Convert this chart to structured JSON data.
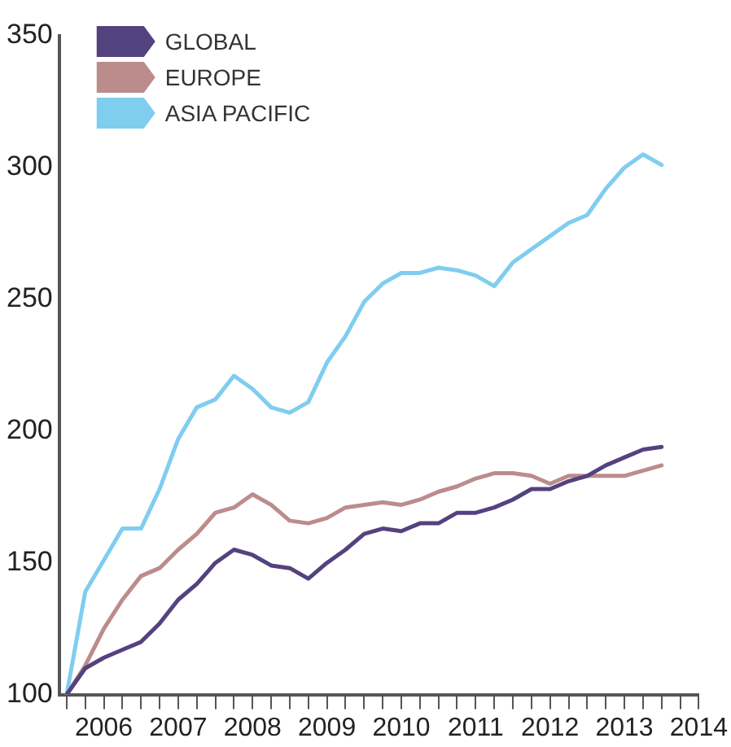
{
  "chart_data": {
    "type": "line",
    "legend": "top left",
    "marker": "none",
    "line_style": "solid",
    "grid": false,
    "x": [
      2005.5,
      2005.75,
      2006,
      2006.25,
      2006.5,
      2006.75,
      2007,
      2007.25,
      2007.5,
      2007.75,
      2008,
      2008.25,
      2008.5,
      2008.75,
      2009,
      2009.25,
      2009.5,
      2009.75,
      2010,
      2010.25,
      2010.5,
      2010.75,
      2011,
      2011.25,
      2011.5,
      2011.75,
      2012,
      2012.25,
      2012.5,
      2012.75,
      2013,
      2013.25,
      2013.5
    ],
    "xlim": [
      2005.4,
      2014
    ],
    "xticks": [
      {
        "value": 2005.5,
        "label": null
      },
      {
        "value": 2005.75,
        "label": null
      },
      2006,
      {
        "value": 2006.25,
        "label": null
      },
      {
        "value": 2006.5,
        "label": null
      },
      {
        "value": 2006.75,
        "label": null
      },
      2007,
      {
        "value": 2007.25,
        "label": null
      },
      {
        "value": 2007.5,
        "label": null
      },
      {
        "value": 2007.75,
        "label": null
      },
      2008,
      {
        "value": 2008.25,
        "label": null
      },
      {
        "value": 2008.5,
        "label": null
      },
      {
        "value": 2008.75,
        "label": null
      },
      2009,
      {
        "value": 2009.25,
        "label": null
      },
      {
        "value": 2009.5,
        "label": null
      },
      {
        "value": 2009.75,
        "label": null
      },
      2010,
      {
        "value": 2010.25,
        "label": null
      },
      {
        "value": 2010.5,
        "label": null
      },
      {
        "value": 2010.75,
        "label": null
      },
      2011,
      {
        "value": 2011.25,
        "label": null
      },
      {
        "value": 2011.5,
        "label": null
      },
      {
        "value": 2011.75,
        "label": null
      },
      2012,
      {
        "value": 2012.25,
        "label": null
      },
      {
        "value": 2012.5,
        "label": null
      },
      {
        "value": 2012.75,
        "label": null
      },
      2013,
      {
        "value": 2013.25,
        "label": null
      },
      {
        "value": 2013.5,
        "label": null
      },
      {
        "value": 2013.75,
        "label": null
      },
      2014
    ],
    "ylim": [
      100,
      350
    ],
    "yticks": [
      100,
      150,
      200,
      250,
      300,
      350
    ],
    "series": [
      {
        "name": "GLOBAL",
        "color": "#54427f",
        "values": [
          100,
          110,
          114,
          117,
          120,
          127,
          136,
          142,
          150,
          155,
          153,
          149,
          148,
          144,
          150,
          155,
          161,
          163,
          162,
          165,
          165,
          169,
          169,
          171,
          174,
          178,
          178,
          181,
          183,
          187,
          190,
          193,
          194
        ]
      },
      {
        "name": "EUROPE",
        "color": "#bc8c8c",
        "values": [
          100,
          111,
          125,
          136,
          145,
          148,
          155,
          161,
          169,
          171,
          176,
          172,
          166,
          165,
          167,
          171,
          172,
          173,
          172,
          174,
          177,
          179,
          182,
          184,
          184,
          183,
          180,
          183,
          183,
          183,
          183,
          185,
          187
        ]
      },
      {
        "name": "ASIA PACIFIC",
        "color": "#7fcdef",
        "values": [
          100,
          139,
          151,
          163,
          163,
          178,
          197,
          209,
          212,
          221,
          216,
          209,
          207,
          211,
          226,
          236,
          249,
          256,
          260,
          260,
          262,
          261,
          259,
          255,
          264,
          269,
          274,
          279,
          282,
          292,
          300,
          305,
          301
        ]
      }
    ]
  }
}
